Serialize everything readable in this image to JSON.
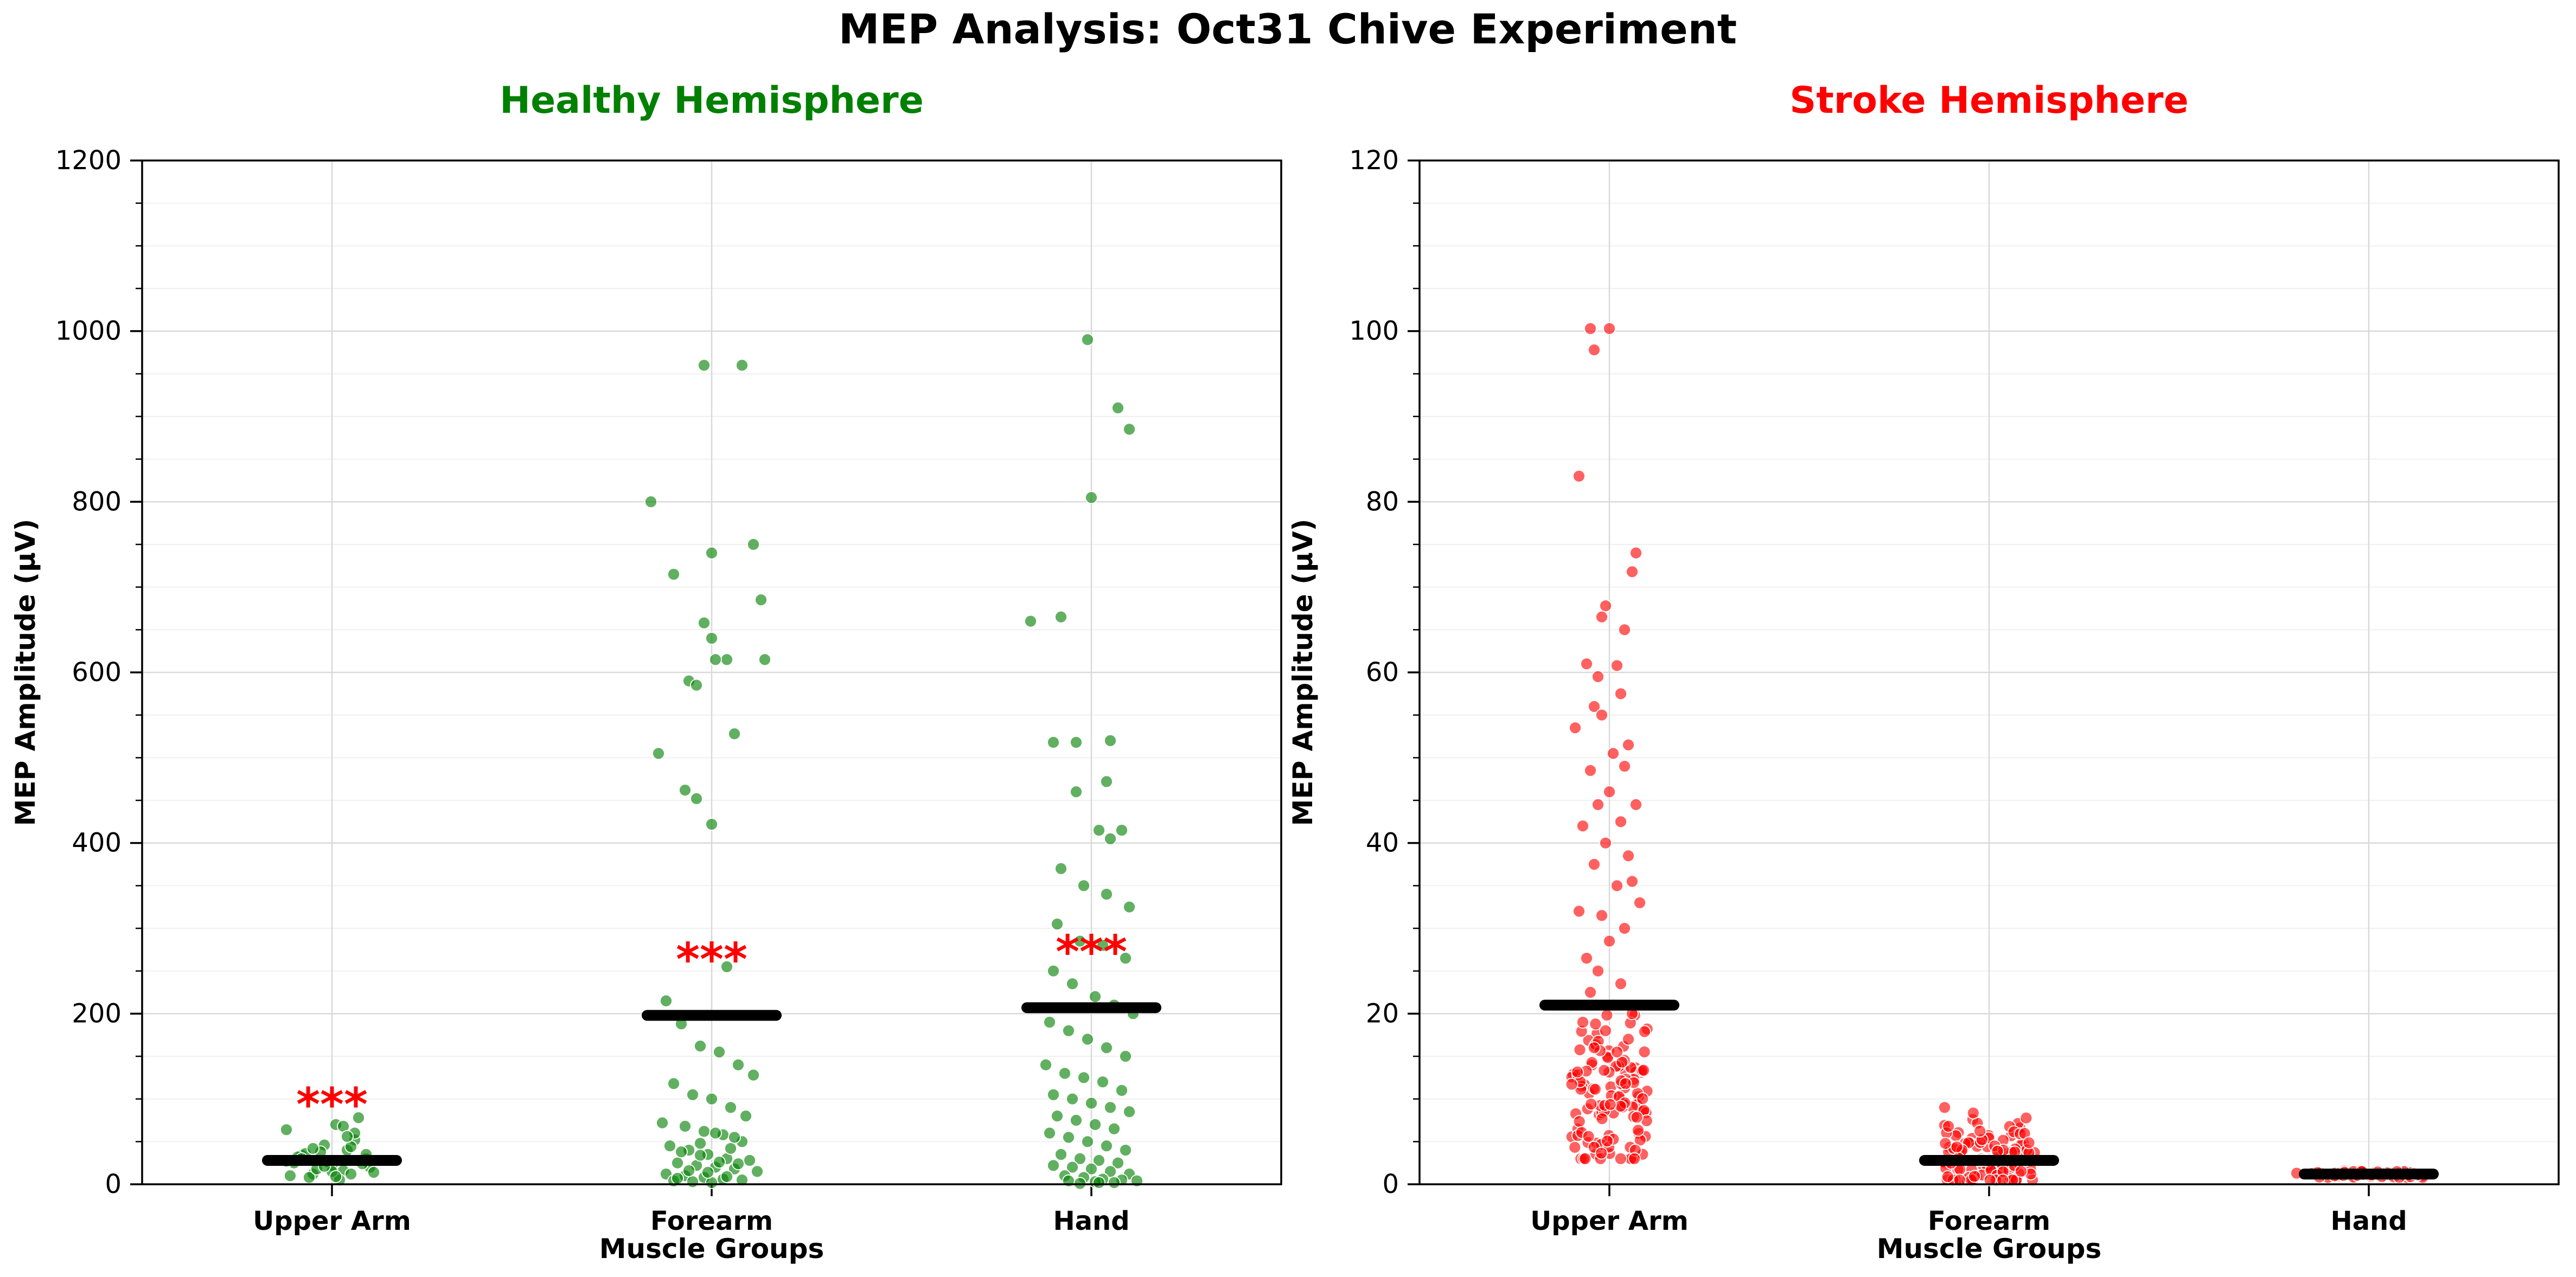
{
  "figure": {
    "title": "MEP Analysis: Oct31 Chive Experiment"
  },
  "colors": {
    "healthy": "#008000",
    "stroke": "#ff0000",
    "mean_bar": "#000000",
    "significance": "#ff0000",
    "grid": "#d9d9d9"
  },
  "chart_data": [
    {
      "type": "scatter",
      "subtype": "strip plot with mean bars",
      "title": "Healthy Hemisphere",
      "title_color": "#008000",
      "xlabel": "Muscle Groups",
      "ylabel": "MEP Amplitude (µV)",
      "categories": [
        "Upper Arm",
        "Forearm",
        "Hand"
      ],
      "ylim": [
        0,
        1200
      ],
      "yticks": [
        "0",
        "200",
        "400",
        "600",
        "800",
        "1000",
        "1200"
      ],
      "grid": true,
      "point_color": "#008000",
      "means": [
        28,
        198,
        207
      ],
      "significance": [
        "***",
        "***",
        "***"
      ],
      "points": [
        {
          "category": "Upper Arm",
          "x_offset": [
            -0.12,
            -0.08,
            -0.05,
            -0.02,
            0.01,
            0.04,
            0.07,
            0.1,
            -0.1,
            -0.06,
            -0.03,
            0.0,
            0.03,
            0.06,
            0.09,
            -0.11,
            -0.07,
            -0.04,
            0.02,
            0.05,
            0.08,
            0.11,
            -0.09,
            -0.01,
            0.03,
            0.06,
            -0.05,
            0.0,
            0.04,
            -0.08,
            0.07,
            -0.02,
            0.01,
            0.09,
            -0.12,
            0.05
          ],
          "values": [
            64,
            34,
            12,
            46,
            70,
            40,
            28,
            20,
            25,
            8,
            38,
            22,
            16,
            52,
            30,
            10,
            36,
            18,
            5,
            44,
            24,
            14,
            32,
            26,
            68,
            60,
            42,
            15,
            56,
            30,
            78,
            21,
            9,
            35,
            27,
            12
          ]
        },
        {
          "category": "Forearm",
          "x_offset": [
            -0.02,
            0.08,
            -0.16,
            0.0,
            0.11,
            -0.1,
            -0.02,
            0.13,
            0.0,
            -0.06,
            0.04,
            0.14,
            0.01,
            -0.04,
            0.06,
            -0.14,
            -0.07,
            -0.04,
            0.0,
            0.04,
            -0.12,
            -0.08,
            -0.03,
            0.02,
            0.07,
            0.11,
            -0.1,
            -0.05,
            0.0,
            0.05,
            0.09,
            -0.13,
            -0.07,
            -0.02,
            0.03,
            0.08,
            -0.11,
            -0.06,
            -0.01,
            0.04,
            0.1,
            -0.09,
            -0.04,
            0.01,
            0.06,
            0.12,
            -0.12,
            -0.07,
            -0.02,
            0.03,
            0.08,
            -0.1,
            -0.05,
            0.0,
            0.05,
            -0.08,
            -0.03,
            0.02,
            0.07,
            -0.06,
            -0.01,
            0.04,
            -0.09,
            0.01,
            0.06,
            -0.03
          ],
          "values": [
            960,
            960,
            800,
            740,
            750,
            715,
            658,
            685,
            640,
            590,
            615,
            615,
            615,
            585,
            528,
            505,
            462,
            452,
            422,
            255,
            215,
            188,
            162,
            155,
            140,
            128,
            118,
            105,
            100,
            90,
            80,
            72,
            68,
            62,
            58,
            50,
            45,
            40,
            35,
            30,
            28,
            25,
            22,
            20,
            18,
            15,
            12,
            10,
            8,
            6,
            5,
            4,
            3,
            2,
            42,
            38,
            34,
            26,
            24,
            16,
            14,
            9,
            7,
            60,
            55,
            48
          ]
        },
        {
          "category": "Hand",
          "x_offset": [
            -0.01,
            0.07,
            0.1,
            0.0,
            -0.16,
            -0.08,
            0.05,
            -0.1,
            -0.04,
            0.04,
            -0.04,
            0.02,
            0.08,
            0.05,
            -0.08,
            -0.02,
            0.04,
            0.1,
            -0.09,
            -0.03,
            0.03,
            0.09,
            -0.1,
            -0.05,
            0.01,
            0.06,
            0.11,
            -0.11,
            -0.06,
            -0.01,
            0.04,
            0.09,
            -0.12,
            -0.07,
            -0.02,
            0.03,
            0.08,
            -0.1,
            -0.05,
            0.0,
            0.05,
            0.1,
            -0.09,
            -0.04,
            0.01,
            0.06,
            -0.11,
            -0.06,
            -0.01,
            0.04,
            0.09,
            -0.08,
            -0.03,
            0.02,
            0.07,
            -0.1,
            -0.05,
            0.0,
            0.05,
            0.1,
            -0.07,
            -0.02,
            0.03,
            0.08,
            -0.06,
            0.01,
            0.06,
            -0.03,
            0.02,
            0.12
          ],
          "values": [
            990,
            910,
            885,
            805,
            660,
            665,
            520,
            518,
            518,
            472,
            460,
            415,
            415,
            405,
            370,
            350,
            340,
            325,
            305,
            285,
            280,
            265,
            250,
            235,
            220,
            210,
            200,
            190,
            180,
            170,
            160,
            150,
            140,
            130,
            125,
            120,
            110,
            105,
            100,
            95,
            90,
            85,
            80,
            75,
            70,
            65,
            60,
            55,
            50,
            45,
            40,
            35,
            30,
            28,
            25,
            22,
            20,
            18,
            15,
            12,
            10,
            8,
            6,
            5,
            4,
            3,
            2,
            1,
            2,
            4
          ]
        }
      ]
    },
    {
      "type": "scatter",
      "subtype": "strip plot with mean bars",
      "title": "Stroke Hemisphere",
      "title_color": "#ff0000",
      "xlabel": "Muscle Groups",
      "ylabel": "MEP Amplitude (µV)",
      "categories": [
        "Upper Arm",
        "Forearm",
        "Hand"
      ],
      "ylim": [
        0,
        120
      ],
      "yticks": [
        "0",
        "20",
        "40",
        "60",
        "80",
        "100",
        "120"
      ],
      "grid": true,
      "point_color": "#ff0000",
      "means": [
        21,
        2.8,
        1.2
      ],
      "significance": [
        "",
        "",
        ""
      ],
      "points": [
        {
          "category": "Upper Arm",
          "x_offset": [
            -0.05,
            0.0,
            -0.04,
            -0.08,
            0.07,
            0.06,
            -0.01,
            -0.02,
            0.04,
            -0.06,
            0.02,
            -0.03,
            0.03,
            -0.04,
            -0.09,
            0.05,
            -0.02,
            0.01,
            -0.05,
            0.04,
            0.0,
            -0.03,
            0.07,
            0.03,
            -0.07,
            -0.01,
            0.05,
            -0.04,
            0.06,
            0.02,
            -0.08,
            -0.02,
            0.04,
            0.0,
            0.08,
            -0.06,
            -0.03,
            0.03,
            -0.05,
            0.01,
            0.06,
            -0.07,
            -0.01,
            0.05,
            -0.04,
            0.02
          ],
          "values": [
            100.3,
            100.3,
            97.8,
            83.0,
            74.0,
            71.8,
            67.8,
            66.5,
            65.0,
            61.0,
            60.8,
            59.5,
            57.5,
            56.0,
            53.5,
            51.5,
            55.0,
            50.5,
            48.5,
            49.0,
            46.0,
            44.5,
            44.5,
            42.5,
            42.0,
            40.0,
            38.5,
            37.5,
            35.5,
            35.0,
            32.0,
            31.5,
            30.0,
            28.5,
            33.0,
            26.5,
            25.0,
            23.5,
            22.5,
            21.0,
            20.0,
            19.0,
            18.0,
            17.0,
            16.0,
            15.5
          ],
          "cluster": {
            "count": 120,
            "min": 3,
            "max": 21,
            "center": 10,
            "spread": 0.1
          }
        },
        {
          "category": "Forearm",
          "x_offset": [],
          "values": [],
          "cluster": {
            "count": 110,
            "min": 0.5,
            "max": 9,
            "center": 3,
            "spread": 0.12
          }
        },
        {
          "category": "Hand",
          "x_offset": [
            -0.19
          ],
          "values": [
            1.3
          ],
          "cluster": {
            "count": 60,
            "min": 0.8,
            "max": 1.6,
            "center": 1.2,
            "spread": 0.15
          }
        }
      ]
    }
  ]
}
